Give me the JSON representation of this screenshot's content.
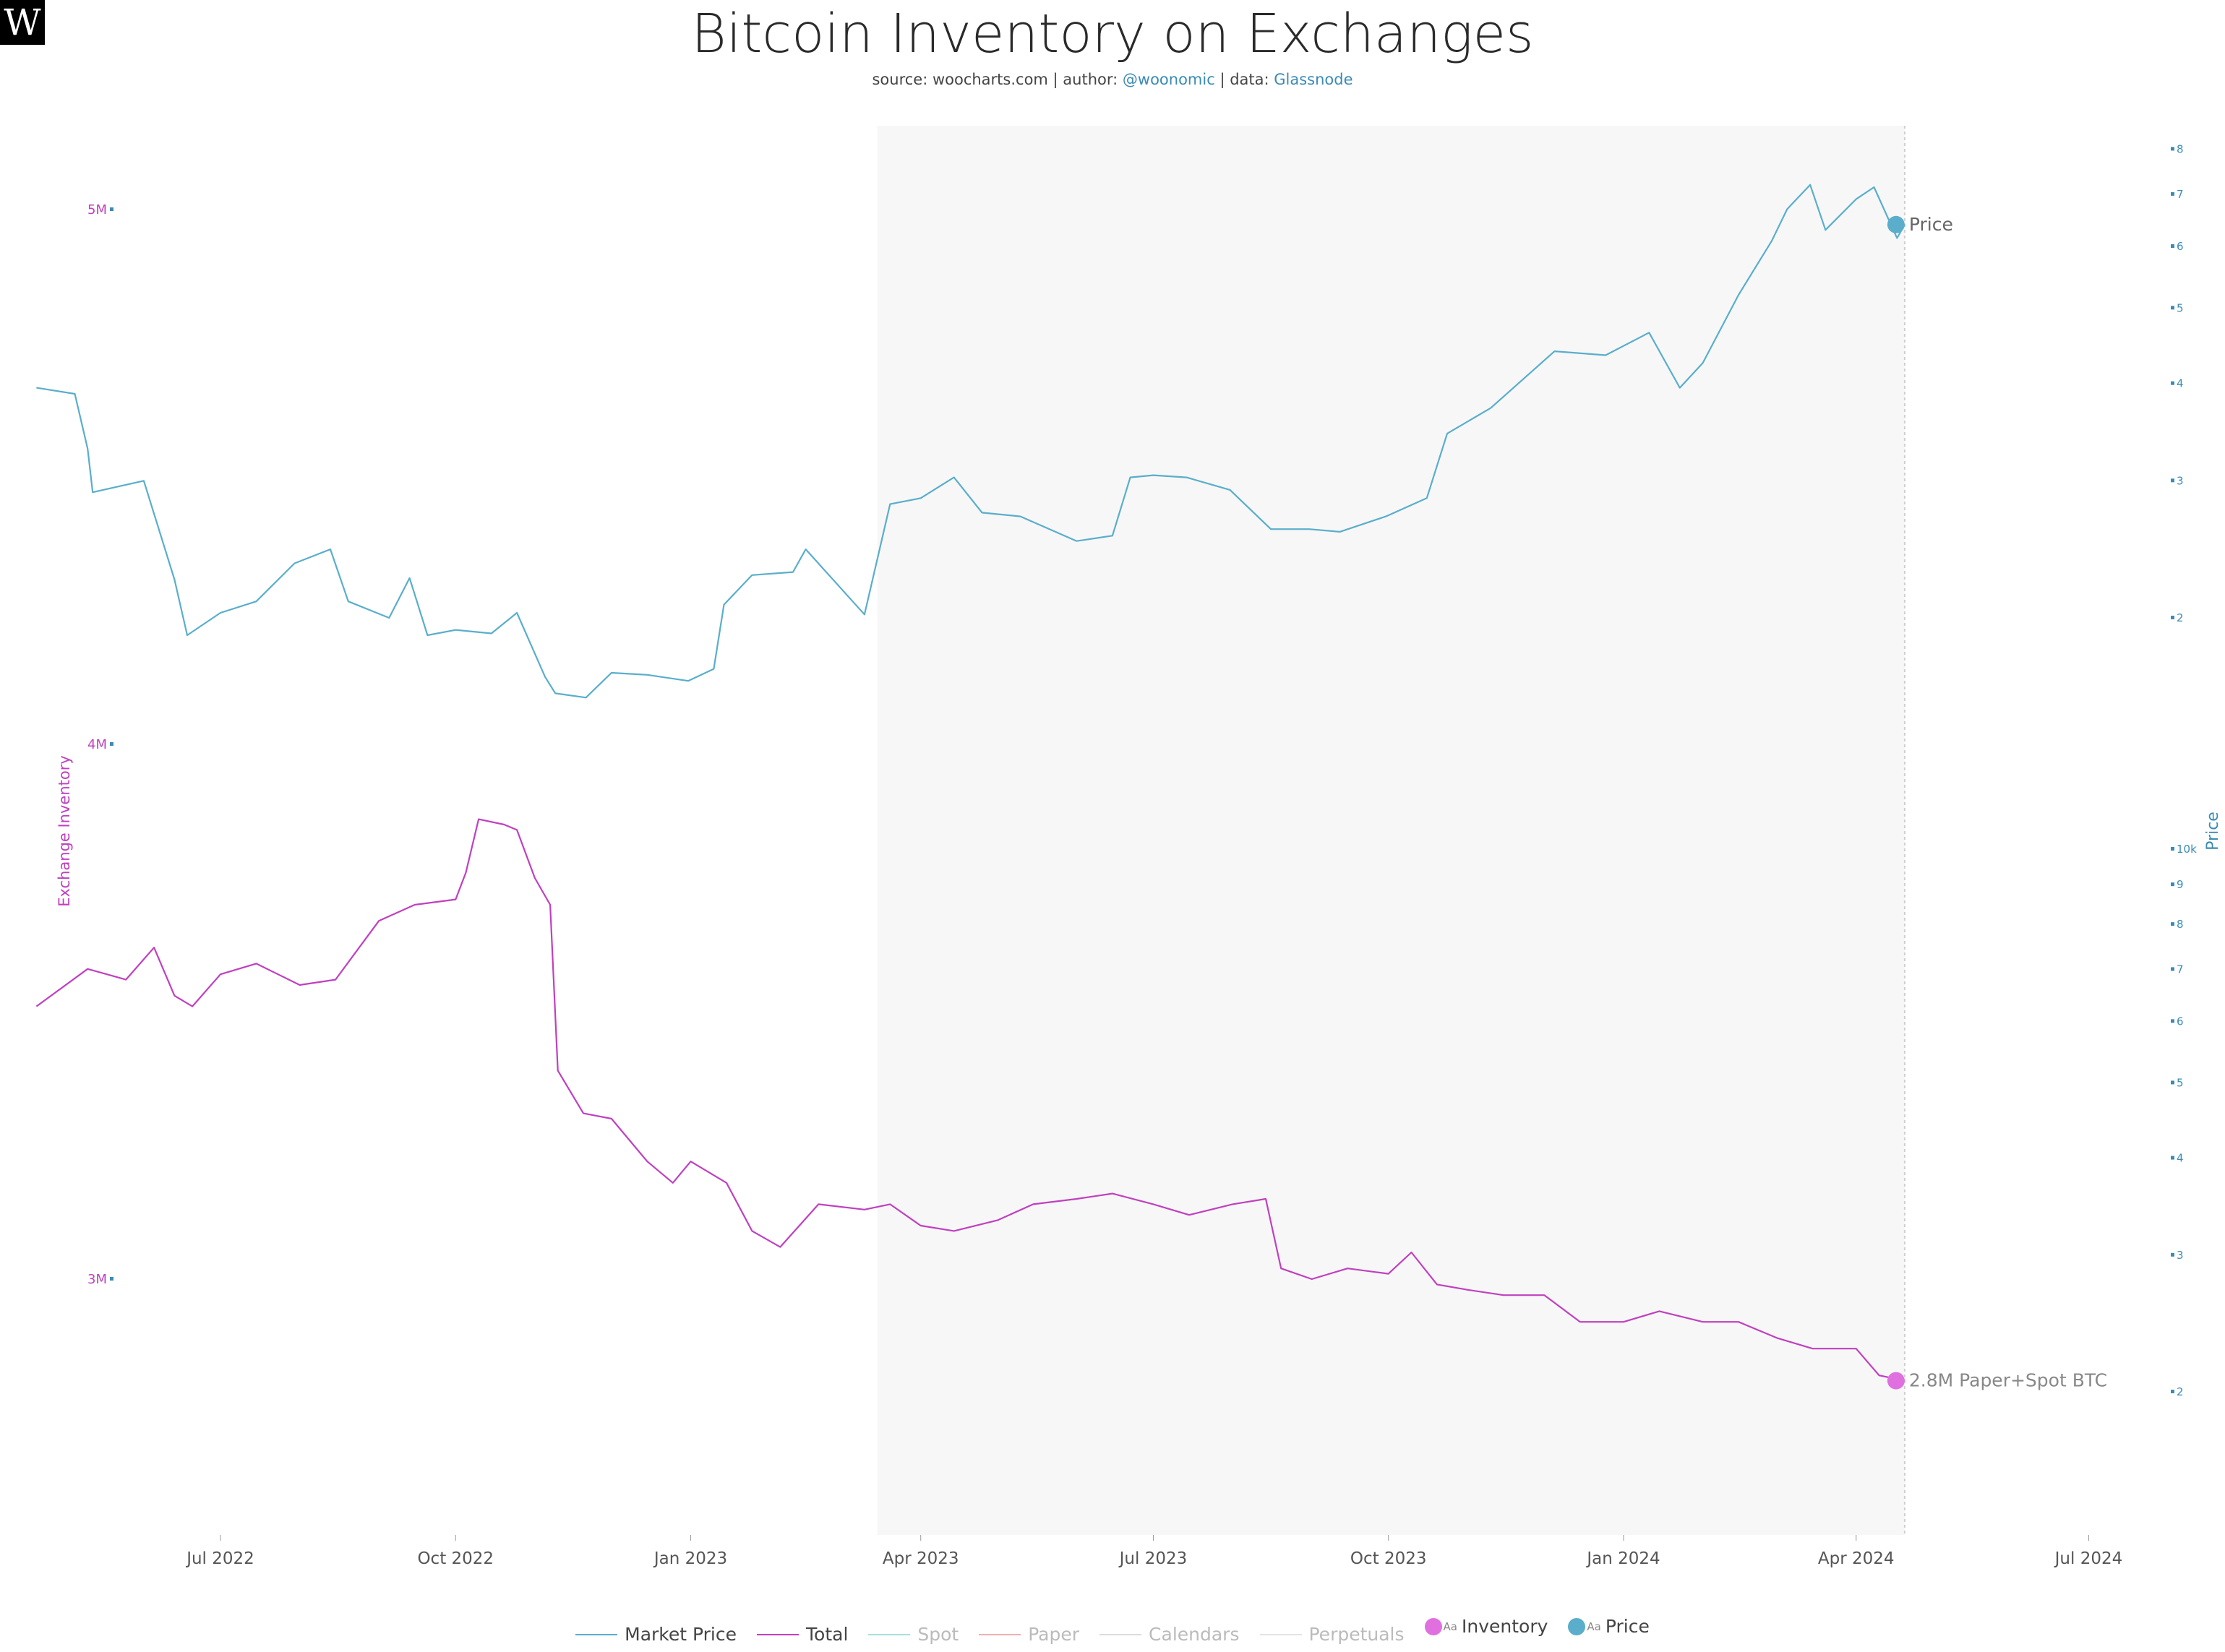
{
  "logo_text": "W",
  "title": "Bitcoin Inventory on Exchanges",
  "subtitle": {
    "source": "source: woocharts.com | author: ",
    "author": "@woonomic",
    "data_sep": " | data: ",
    "data": "Glassnode"
  },
  "legend": {
    "items": [
      {
        "label": "Market Price",
        "color": "#5aaecb",
        "active": true
      },
      {
        "label": "Total",
        "color": "#c040c0",
        "active": true
      },
      {
        "label": "Spot",
        "color": "#a8e0e0",
        "active": false
      },
      {
        "label": "Paper",
        "color": "#f0b0b0",
        "active": false
      },
      {
        "label": "Calendars",
        "color": "#dcdcdc",
        "active": false
      },
      {
        "label": "Perpetuals",
        "color": "#e4e4e4",
        "active": false
      }
    ],
    "markers": [
      {
        "label": "Inventory",
        "aa": "Aa",
        "color": "#e070e0"
      },
      {
        "label": "Price",
        "aa": "Aa",
        "color": "#5aaecb"
      }
    ]
  },
  "chart_data": {
    "type": "line",
    "x_ticks": [
      "Jul 2022",
      "Oct 2022",
      "Jan 2023",
      "Apr 2023",
      "Jul 2023",
      "Oct 2023",
      "Jan 2024",
      "Apr 2024",
      "Jul 2024"
    ],
    "left_axis": {
      "label": "Exchange Inventory",
      "ticks": [
        "5M",
        "4M",
        "3M"
      ],
      "scale": "linear",
      "color": "#c040c0"
    },
    "right_axis": {
      "label": "Price",
      "scale": "log",
      "color": "#3b8bb5",
      "tick_labels": [
        "8",
        "7",
        "6",
        "5",
        "4",
        "3",
        "2",
        "10k",
        "9",
        "8",
        "7",
        "6",
        "5",
        "4",
        "3",
        "2"
      ]
    },
    "shaded_region": {
      "from": "2023-03-15",
      "to": "2024-04-20",
      "color": "#f7f7f7"
    },
    "series": [
      {
        "name": "Market Price",
        "color": "#5aaecb",
        "axis": "right",
        "x": [
          "2022-04-20",
          "2022-05-05",
          "2022-05-10",
          "2022-05-12",
          "2022-06-01",
          "2022-06-13",
          "2022-06-18",
          "2022-07-01",
          "2022-07-15",
          "2022-07-30",
          "2022-08-13",
          "2022-08-20",
          "2022-09-05",
          "2022-09-13",
          "2022-09-20",
          "2022-10-01",
          "2022-10-15",
          "2022-10-25",
          "2022-11-05",
          "2022-11-09",
          "2022-11-21",
          "2022-12-01",
          "2022-12-15",
          "2022-12-31",
          "2023-01-10",
          "2023-01-14",
          "2023-01-25",
          "2023-02-10",
          "2023-02-15",
          "2023-03-10",
          "2023-03-20",
          "2023-04-01",
          "2023-04-14",
          "2023-04-25",
          "2023-05-10",
          "2023-06-01",
          "2023-06-15",
          "2023-06-22",
          "2023-07-01",
          "2023-07-14",
          "2023-07-31",
          "2023-08-16",
          "2023-08-31",
          "2023-09-12",
          "2023-09-30",
          "2023-10-16",
          "2023-10-24",
          "2023-11-10",
          "2023-12-05",
          "2023-12-25",
          "2024-01-11",
          "2024-01-23",
          "2024-02-01",
          "2024-02-15",
          "2024-02-28",
          "2024-03-05",
          "2024-03-14",
          "2024-03-20",
          "2024-04-01",
          "2024-04-08",
          "2024-04-17",
          "2024-04-20"
        ],
        "y": [
          39500,
          38800,
          33000,
          29000,
          30000,
          22400,
          19000,
          20300,
          21000,
          23500,
          24500,
          21000,
          20000,
          22500,
          19000,
          19300,
          19100,
          20300,
          16800,
          16000,
          15800,
          17000,
          16900,
          16600,
          17200,
          20800,
          22700,
          22900,
          24500,
          20200,
          28000,
          28500,
          30300,
          27300,
          27000,
          25100,
          25500,
          30300,
          30500,
          30300,
          29200,
          26000,
          26000,
          25800,
          27000,
          28500,
          34500,
          37200,
          44000,
          43500,
          46500,
          39500,
          42500,
          52000,
          61000,
          67000,
          72000,
          63000,
          69000,
          71500,
          61500,
          64000
        ]
      },
      {
        "name": "Total",
        "color": "#c040c0",
        "axis": "left",
        "x": [
          "2022-04-20",
          "2022-05-10",
          "2022-05-25",
          "2022-06-05",
          "2022-06-13",
          "2022-06-20",
          "2022-07-01",
          "2022-07-15",
          "2022-08-01",
          "2022-08-15",
          "2022-09-01",
          "2022-09-15",
          "2022-10-01",
          "2022-10-05",
          "2022-10-10",
          "2022-10-20",
          "2022-10-25",
          "2022-11-01",
          "2022-11-07",
          "2022-11-10",
          "2022-11-20",
          "2022-12-01",
          "2022-12-15",
          "2022-12-25",
          "2023-01-01",
          "2023-01-15",
          "2023-01-25",
          "2023-02-05",
          "2023-02-20",
          "2023-03-10",
          "2023-03-20",
          "2023-04-01",
          "2023-04-14",
          "2023-05-01",
          "2023-05-15",
          "2023-06-01",
          "2023-06-15",
          "2023-07-01",
          "2023-07-15",
          "2023-08-01",
          "2023-08-14",
          "2023-08-20",
          "2023-09-01",
          "2023-09-15",
          "2023-10-01",
          "2023-10-10",
          "2023-10-20",
          "2023-11-01",
          "2023-11-15",
          "2023-12-01",
          "2023-12-15",
          "2024-01-01",
          "2024-01-15",
          "2024-02-01",
          "2024-02-15",
          "2024-03-01",
          "2024-03-15",
          "2024-04-01",
          "2024-04-10",
          "2024-04-20"
        ],
        "y": [
          3510000,
          3580000,
          3560000,
          3620000,
          3530000,
          3510000,
          3570000,
          3590000,
          3550000,
          3560000,
          3670000,
          3700000,
          3710000,
          3760000,
          3860000,
          3850000,
          3840000,
          3750000,
          3700000,
          3390000,
          3310000,
          3300000,
          3220000,
          3180000,
          3220000,
          3180000,
          3090000,
          3060000,
          3140000,
          3130000,
          3140000,
          3100000,
          3090000,
          3110000,
          3140000,
          3150000,
          3160000,
          3140000,
          3120000,
          3140000,
          3150000,
          3020000,
          3000000,
          3020000,
          3010000,
          3050000,
          2990000,
          2980000,
          2970000,
          2970000,
          2920000,
          2920000,
          2940000,
          2920000,
          2920000,
          2890000,
          2870000,
          2870000,
          2820000,
          2810000
        ]
      }
    ],
    "annotations": [
      {
        "text": "Price",
        "series": "Market Price"
      },
      {
        "text": "2.8M Paper+Spot BTC",
        "series": "Total"
      }
    ]
  }
}
